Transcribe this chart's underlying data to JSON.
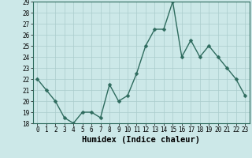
{
  "x": [
    0,
    1,
    2,
    3,
    4,
    5,
    6,
    7,
    8,
    9,
    10,
    11,
    12,
    13,
    14,
    15,
    16,
    17,
    18,
    19,
    20,
    21,
    22,
    23
  ],
  "y": [
    22,
    21,
    20,
    18.5,
    18,
    19,
    19,
    18.5,
    21.5,
    20,
    20.5,
    22.5,
    25,
    26.5,
    26.5,
    29,
    24,
    25.5,
    24,
    25,
    24,
    23,
    22,
    20.5
  ],
  "xlabel": "Humidex (Indice chaleur)",
  "ylim": [
    18,
    29
  ],
  "xlim": [
    -0.5,
    23.5
  ],
  "yticks": [
    18,
    19,
    20,
    21,
    22,
    23,
    24,
    25,
    26,
    27,
    28,
    29
  ],
  "xticks": [
    0,
    1,
    2,
    3,
    4,
    5,
    6,
    7,
    8,
    9,
    10,
    11,
    12,
    13,
    14,
    15,
    16,
    17,
    18,
    19,
    20,
    21,
    22,
    23
  ],
  "line_color": "#2e6b5e",
  "bg_color": "#cce8e8",
  "grid_color": "#aacccc",
  "tick_fontsize": 5.5,
  "xlabel_fontsize": 7.5,
  "line_width": 1.0,
  "marker_size": 2.5
}
